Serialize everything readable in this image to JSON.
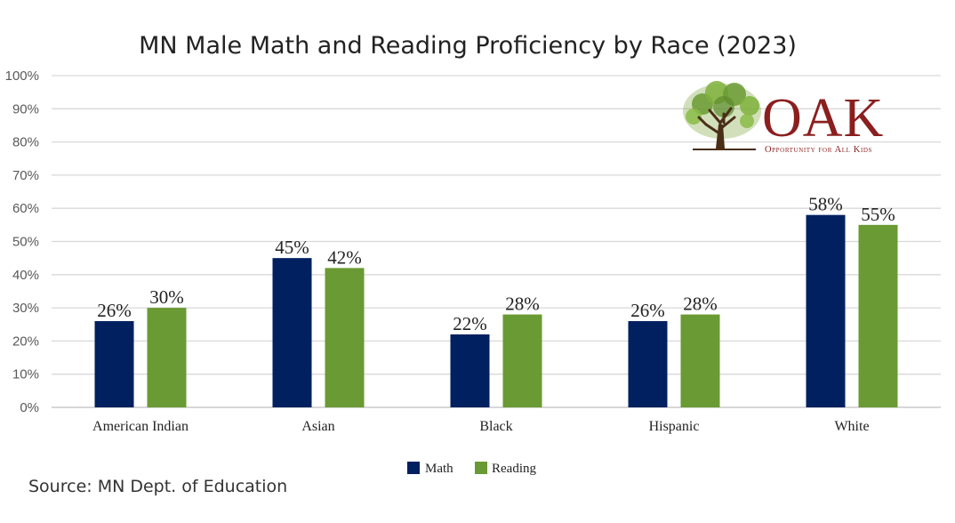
{
  "chart_data": {
    "type": "bar",
    "title": "MN Male Math and Reading Proficiency by Race (2023)",
    "categories": [
      "American Indian",
      "Asian",
      "Black",
      "Hispanic",
      "White"
    ],
    "series": [
      {
        "name": "Math",
        "values": [
          26,
          45,
          22,
          26,
          58
        ],
        "labels": [
          "26%",
          "45%",
          "22%",
          "26%",
          "58%"
        ],
        "color": "#002060"
      },
      {
        "name": "Reading",
        "values": [
          30,
          42,
          28,
          28,
          55
        ],
        "labels": [
          "30%",
          "42%",
          "28%",
          "28%",
          "55%"
        ],
        "color": "#6a9a33"
      }
    ],
    "ylim": [
      0,
      100
    ],
    "yticks": [
      0,
      10,
      20,
      30,
      40,
      50,
      60,
      70,
      80,
      90,
      100
    ],
    "ytick_labels": [
      "0%",
      "10%",
      "20%",
      "30%",
      "40%",
      "50%",
      "60%",
      "70%",
      "80%",
      "90%",
      "100%"
    ],
    "grid": true,
    "legend_position": "bottom-center",
    "xlabel": "",
    "ylabel": ""
  },
  "source": "Source: MN Dept. of Education",
  "logo": {
    "name": "OAK",
    "tagline": "Opportunity for All Kids",
    "color": "#8b1e1e",
    "icon": "tree-icon"
  }
}
